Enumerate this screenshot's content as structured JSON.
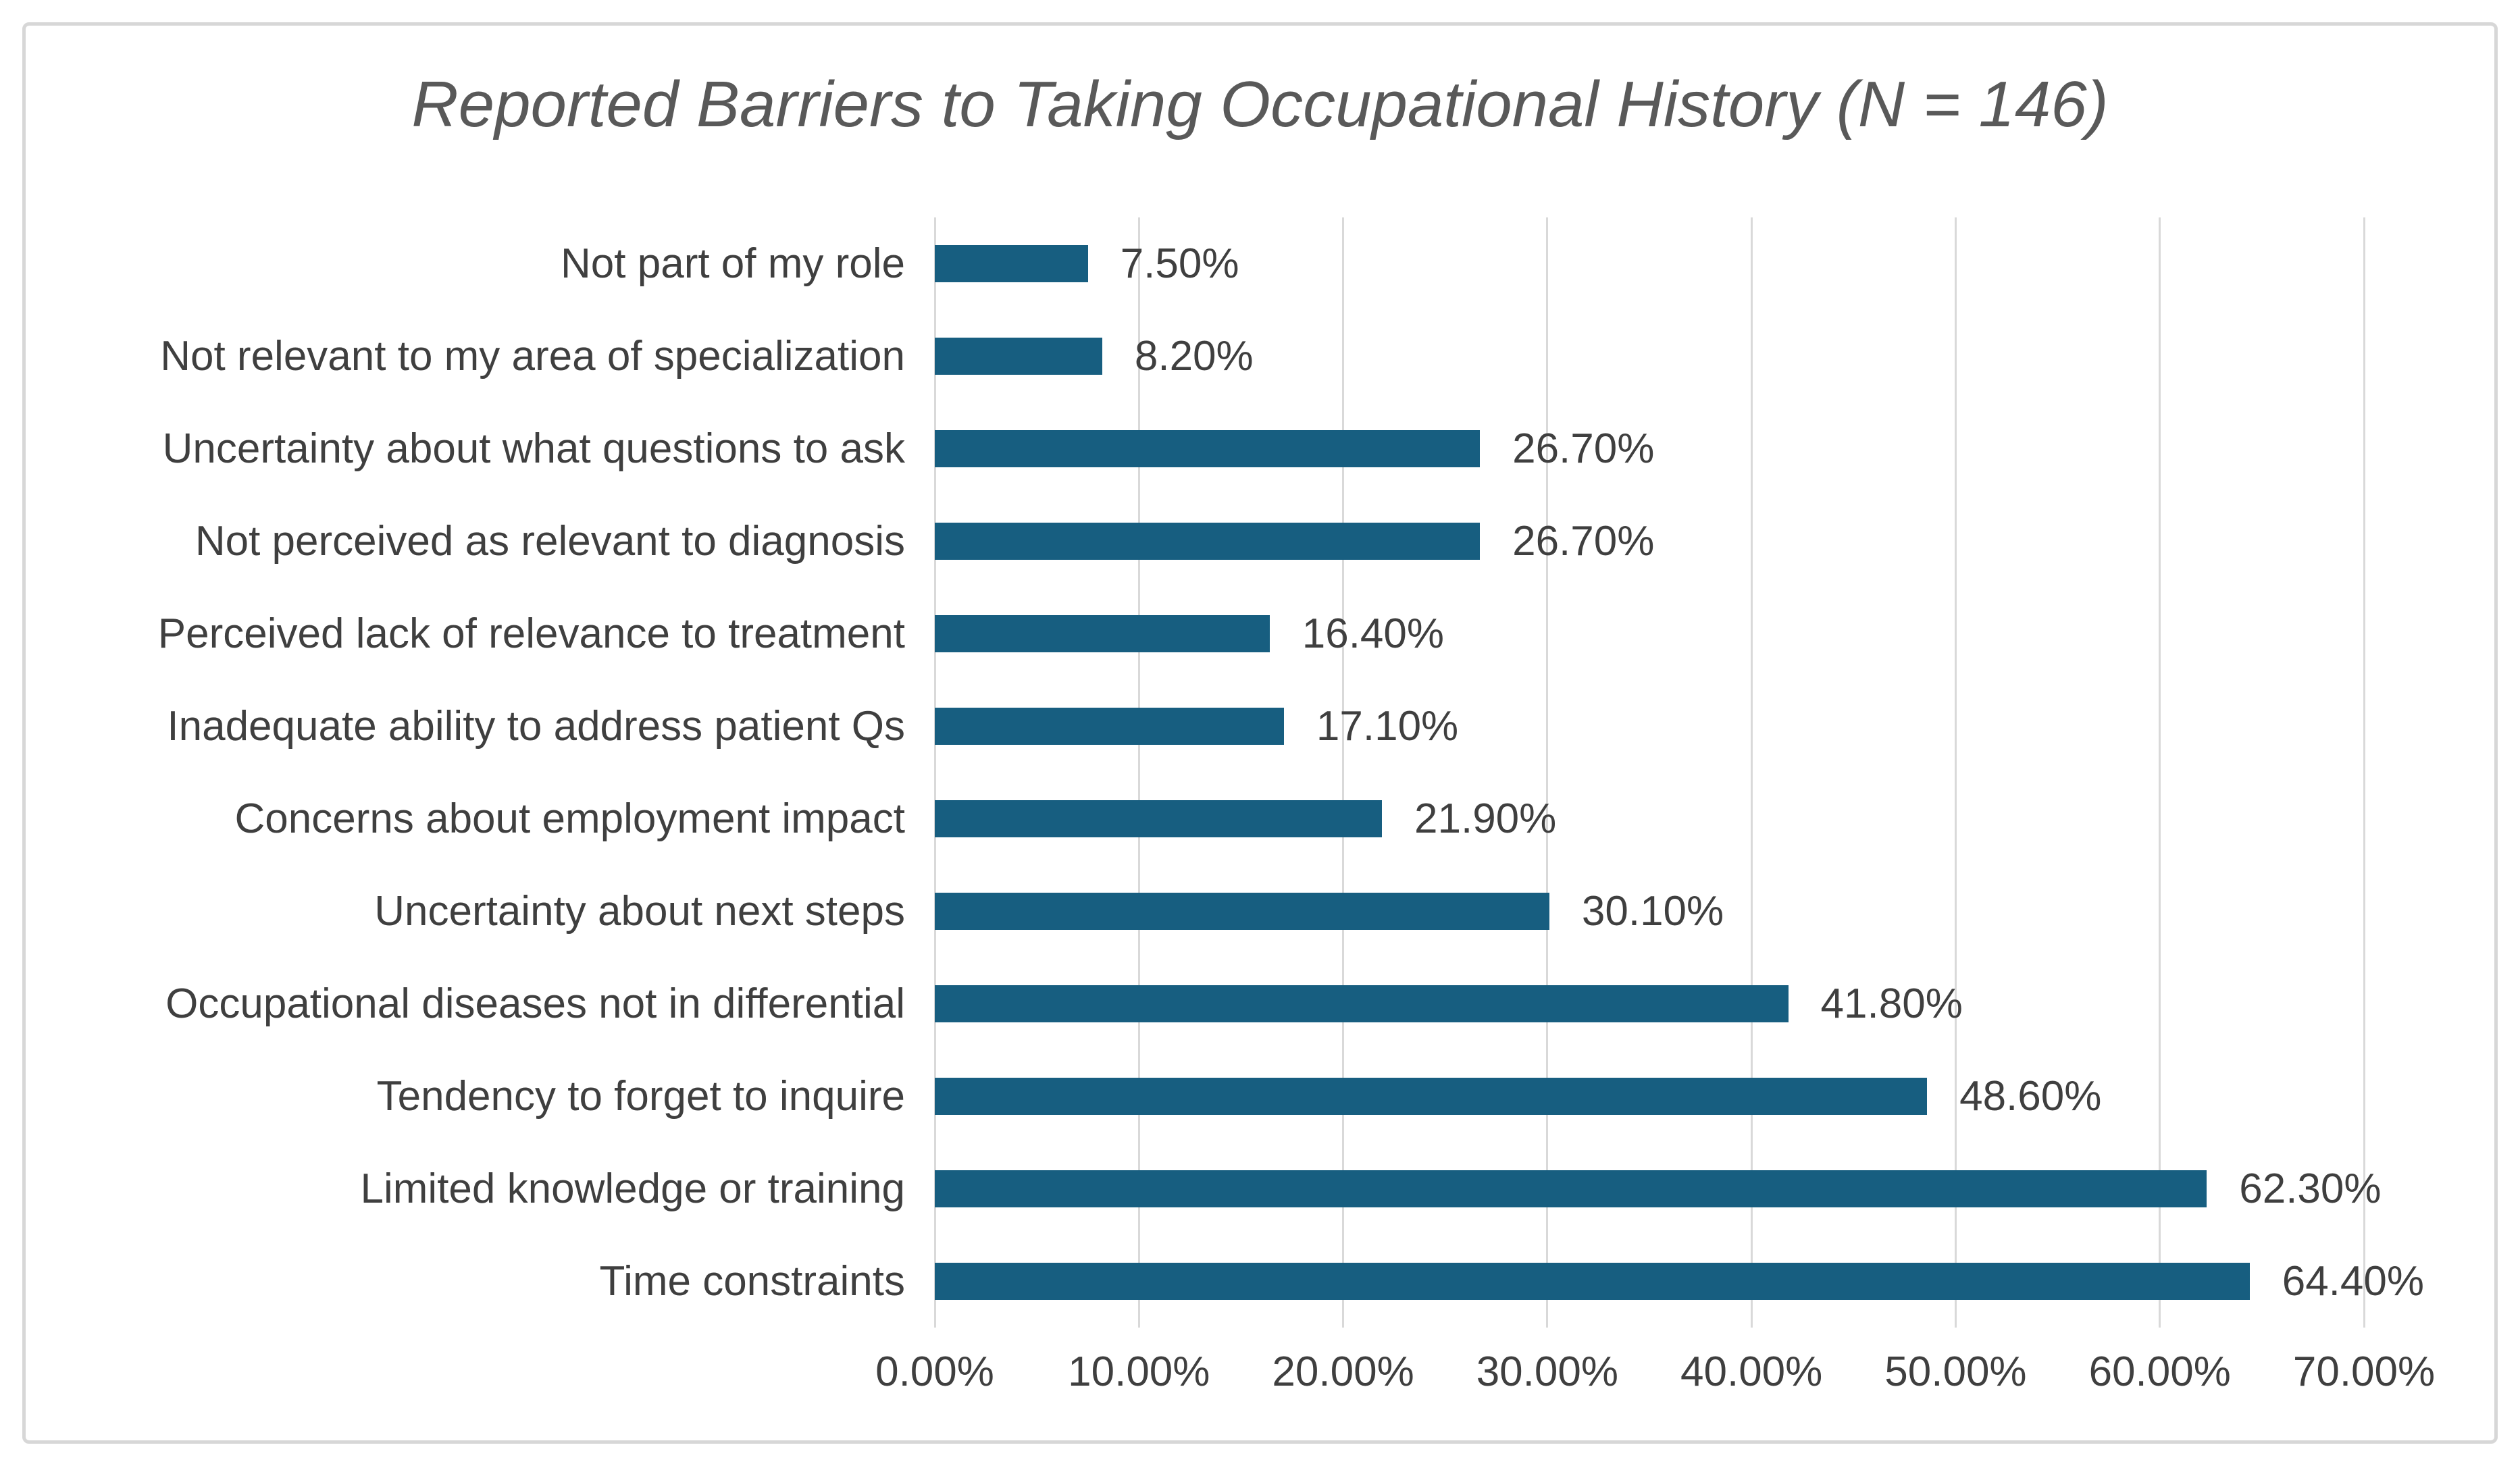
{
  "figure": {
    "background_color": "#ffffff",
    "border_color": "#d7d7d7"
  },
  "chart_data": {
    "type": "bar",
    "orientation": "horizontal",
    "title": "Reported Barriers to Taking Occupational History (N = 146)",
    "categories": [
      "Not part of my role",
      "Not relevant to my area of specialization",
      "Uncertainty about what questions to ask",
      "Not perceived as relevant to diagnosis",
      "Perceived lack of relevance to treatment",
      "Inadequate ability to address patient Qs",
      "Concerns about employment impact",
      "Uncertainty about next steps",
      "Occupational diseases not in differential",
      "Tendency to forget to inquire",
      "Limited knowledge or training",
      "Time constraints"
    ],
    "values": [
      7.5,
      8.2,
      26.7,
      26.7,
      16.4,
      17.1,
      21.9,
      30.1,
      41.8,
      48.6,
      62.3,
      64.4
    ],
    "value_labels": [
      "7.50%",
      "8.20%",
      "26.70%",
      "26.70%",
      "16.40%",
      "17.10%",
      "21.90%",
      "30.10%",
      "41.80%",
      "48.60%",
      "62.30%",
      "64.40%"
    ],
    "xlabel": "",
    "ylabel": "",
    "xlim": [
      0,
      70
    ],
    "x_tick_values": [
      0,
      10,
      20,
      30,
      40,
      50,
      60,
      70
    ],
    "x_ticks": [
      "0.00%",
      "10.00%",
      "20.00%",
      "30.00%",
      "40.00%",
      "50.00%",
      "60.00%",
      "70.00%"
    ],
    "grid": "vertical-gridlines-on",
    "legend": "none",
    "bar_color": "#175e80",
    "gridline_color": "#d9d9d9",
    "title_color": "#595959",
    "label_color": "#3f3f3f"
  }
}
